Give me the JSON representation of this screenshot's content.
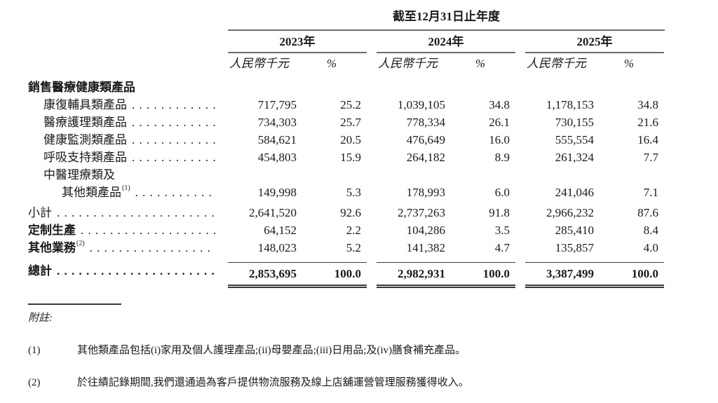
{
  "table": {
    "period_header": "截至12月31日止年度",
    "amount_header": "人民幣千元",
    "percent_header": "%",
    "years": [
      "2023年",
      "2024年",
      "2025年"
    ],
    "rows": [
      {
        "label": "銷售醫療健康類產品",
        "indent": 0,
        "bold": true,
        "leader": false,
        "values": []
      },
      {
        "label": "康復輔具類產品",
        "indent": 1,
        "bold": false,
        "leader": true,
        "values": [
          "717,795",
          "25.2",
          "1,039,105",
          "34.8",
          "1,178,153",
          "34.8"
        ]
      },
      {
        "label": "醫療護理類產品",
        "indent": 1,
        "bold": false,
        "leader": true,
        "values": [
          "734,303",
          "25.7",
          "778,334",
          "26.1",
          "730,155",
          "21.6"
        ]
      },
      {
        "label": "健康監測類產品",
        "indent": 1,
        "bold": false,
        "leader": true,
        "values": [
          "584,621",
          "20.5",
          "476,649",
          "16.0",
          "555,554",
          "16.4"
        ]
      },
      {
        "label": "呼吸支持類產品",
        "indent": 1,
        "bold": false,
        "leader": true,
        "values": [
          "454,803",
          "15.9",
          "264,182",
          "8.9",
          "261,324",
          "7.7"
        ]
      },
      {
        "label": "中醫理療類及",
        "indent": 1,
        "bold": false,
        "leader": false,
        "values": []
      },
      {
        "label": "其他類產品",
        "sup": "(1)",
        "indent": 2,
        "bold": false,
        "leader": true,
        "values": [
          "149,998",
          "5.3",
          "178,993",
          "6.0",
          "241,046",
          "7.1"
        ]
      },
      {
        "label": "小計",
        "indent": 0,
        "bold": false,
        "leader": true,
        "presub": true,
        "values": [
          "2,641,520",
          "92.6",
          "2,737,263",
          "91.8",
          "2,966,232",
          "87.6"
        ]
      },
      {
        "label": "定制生產",
        "indent": 0,
        "bold": true,
        "leader": true,
        "values": [
          "64,152",
          "2.2",
          "104,286",
          "3.5",
          "285,410",
          "8.4"
        ]
      },
      {
        "label": "其他業務",
        "sup": "(2)",
        "indent": 0,
        "bold": true,
        "leader": true,
        "values": [
          "148,023",
          "5.2",
          "141,382",
          "4.7",
          "135,857",
          "4.0"
        ]
      },
      {
        "label": "總計",
        "indent": 0,
        "bold": true,
        "leader": true,
        "total": true,
        "values": [
          "2,853,695",
          "100.0",
          "2,982,931",
          "100.0",
          "3,387,499",
          "100.0"
        ]
      }
    ]
  },
  "notes": {
    "header": "附註:",
    "items": [
      {
        "marker": "(1)",
        "text": "其他類產品包括(i)家用及個人護理產品;(ii)母嬰產品;(iii)日用品;及(iv)膳食補充產品。"
      },
      {
        "marker": "(2)",
        "text": "於往績記錄期間,我們還通過為客戶提供物流服務及線上店舖運營管理服務獲得收入。"
      }
    ]
  },
  "colors": {
    "text": "#1a1a1a",
    "rule_gray": "#6e6e6e",
    "rule_dark": "#3a3a3a"
  }
}
